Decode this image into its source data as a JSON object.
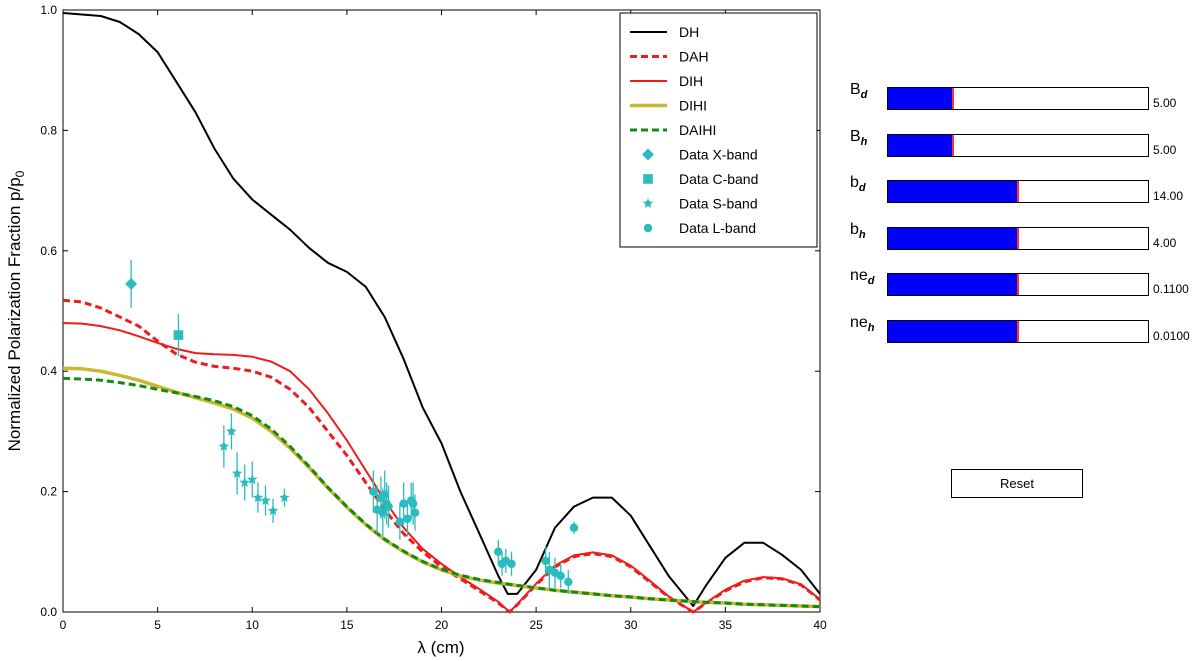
{
  "chart_data": {
    "type": "line",
    "title": "",
    "xlabel": "λ (cm)",
    "ylabel_main": "Normalized Polarization Fraction p/p",
    "ylabel_sub": "0",
    "xlim": [
      0,
      40
    ],
    "ylim": [
      0,
      1.0
    ],
    "xticks": [
      0,
      5,
      10,
      15,
      20,
      25,
      30,
      35,
      40
    ],
    "yticks": [
      0.0,
      0.2,
      0.4,
      0.6,
      0.8,
      1.0
    ],
    "xtick_labels": [
      "0",
      "5",
      "10",
      "15",
      "20",
      "25",
      "30",
      "35",
      "40"
    ],
    "ytick_labels": [
      "0.0",
      "0.2",
      "0.4",
      "0.6",
      "0.8",
      "1.0"
    ],
    "legend_position": "top-right",
    "series": [
      {
        "name": "DH",
        "color": "#000000",
        "style": "solid",
        "kind": "line",
        "x": [
          0,
          2,
          3,
          4,
          5,
          6,
          7,
          8,
          9,
          10,
          11,
          12,
          13,
          14,
          15,
          16,
          17,
          18,
          19,
          20,
          21,
          22,
          23,
          23.5,
          24,
          25,
          26,
          27,
          28,
          29,
          30,
          31,
          32,
          33.3,
          34,
          35,
          36,
          37,
          38,
          39,
          40
        ],
        "y": [
          0.995,
          0.99,
          0.98,
          0.96,
          0.93,
          0.88,
          0.83,
          0.77,
          0.72,
          0.685,
          0.66,
          0.635,
          0.605,
          0.58,
          0.565,
          0.54,
          0.49,
          0.42,
          0.34,
          0.28,
          0.2,
          0.13,
          0.06,
          0.03,
          0.03,
          0.07,
          0.14,
          0.175,
          0.19,
          0.19,
          0.16,
          0.11,
          0.06,
          0.01,
          0.045,
          0.09,
          0.115,
          0.115,
          0.095,
          0.07,
          0.03
        ]
      },
      {
        "name": "DAH",
        "color": "#ee1c1c",
        "style": "dashed",
        "kind": "line",
        "x": [
          0,
          1,
          2,
          3,
          4,
          5,
          6,
          7,
          8,
          9,
          10,
          11,
          12,
          13,
          14,
          15,
          16,
          17,
          18,
          19,
          20,
          21,
          22,
          23,
          23.6,
          24,
          25,
          26,
          27,
          28,
          29,
          30,
          31,
          32,
          33.3,
          34,
          35,
          36,
          37,
          38,
          39,
          40
        ],
        "y": [
          0.518,
          0.515,
          0.505,
          0.49,
          0.475,
          0.45,
          0.428,
          0.415,
          0.408,
          0.405,
          0.4,
          0.39,
          0.37,
          0.34,
          0.3,
          0.26,
          0.215,
          0.17,
          0.13,
          0.1,
          0.075,
          0.055,
          0.035,
          0.015,
          0.0,
          0.012,
          0.045,
          0.075,
          0.092,
          0.097,
          0.092,
          0.075,
          0.05,
          0.025,
          0.0,
          0.015,
          0.035,
          0.05,
          0.057,
          0.055,
          0.045,
          0.02
        ]
      },
      {
        "name": "DIH",
        "color": "#ee1c1c",
        "style": "solid",
        "kind": "line",
        "x": [
          0,
          1,
          2,
          3,
          4,
          5,
          6,
          7,
          8,
          9,
          10,
          11,
          12,
          13,
          14,
          15,
          16,
          17,
          18,
          19,
          20,
          21,
          22,
          23,
          23.6,
          24,
          25,
          26,
          27,
          28,
          29,
          30,
          31,
          32,
          33.3,
          34,
          35,
          36,
          37,
          38,
          39,
          40
        ],
        "y": [
          0.48,
          0.479,
          0.475,
          0.468,
          0.458,
          0.447,
          0.437,
          0.43,
          0.428,
          0.427,
          0.424,
          0.416,
          0.4,
          0.37,
          0.33,
          0.285,
          0.235,
          0.185,
          0.14,
          0.105,
          0.08,
          0.058,
          0.038,
          0.017,
          0.0,
          0.013,
          0.047,
          0.077,
          0.094,
          0.099,
          0.094,
          0.077,
          0.052,
          0.026,
          0.0,
          0.016,
          0.037,
          0.052,
          0.058,
          0.056,
          0.046,
          0.021
        ]
      },
      {
        "name": "DIHI",
        "color": "#c8b832",
        "style": "solid",
        "kind": "thick",
        "x": [
          0,
          1,
          2,
          3,
          4,
          5,
          6,
          7,
          8,
          9,
          10,
          11,
          12,
          13,
          14,
          15,
          16,
          17,
          18,
          19,
          20,
          21,
          22,
          23,
          24,
          25,
          26,
          27,
          28,
          29,
          30,
          31,
          32,
          33,
          34,
          35,
          36,
          37,
          38,
          39,
          40
        ],
        "y": [
          0.405,
          0.404,
          0.4,
          0.393,
          0.385,
          0.375,
          0.365,
          0.356,
          0.347,
          0.337,
          0.322,
          0.3,
          0.272,
          0.24,
          0.206,
          0.174,
          0.145,
          0.12,
          0.1,
          0.083,
          0.07,
          0.06,
          0.053,
          0.048,
          0.044,
          0.04,
          0.036,
          0.033,
          0.03,
          0.027,
          0.025,
          0.022,
          0.02,
          0.018,
          0.016,
          0.015,
          0.013,
          0.012,
          0.011,
          0.01,
          0.009
        ]
      },
      {
        "name": "DAIHI",
        "color": "#138a13",
        "style": "dashed",
        "kind": "line",
        "x": [
          0,
          1,
          2,
          3,
          4,
          5,
          6,
          7,
          8,
          9,
          10,
          11,
          12,
          13,
          14,
          15,
          16,
          17,
          18,
          19,
          20,
          21,
          22,
          23,
          24,
          25,
          26,
          27,
          28,
          29,
          30,
          31,
          32,
          33,
          34,
          35,
          36,
          37,
          38,
          39,
          40
        ],
        "y": [
          0.388,
          0.387,
          0.385,
          0.381,
          0.376,
          0.37,
          0.364,
          0.358,
          0.351,
          0.341,
          0.326,
          0.304,
          0.275,
          0.242,
          0.207,
          0.175,
          0.146,
          0.121,
          0.101,
          0.084,
          0.071,
          0.061,
          0.054,
          0.049,
          0.044,
          0.04,
          0.036,
          0.033,
          0.03,
          0.027,
          0.025,
          0.022,
          0.02,
          0.018,
          0.016,
          0.015,
          0.013,
          0.012,
          0.011,
          0.01,
          0.009
        ]
      },
      {
        "name": "Data X-band",
        "color": "#2bbcbf",
        "kind": "scatter",
        "marker": "diamond",
        "x": [
          3.6
        ],
        "y": [
          0.545
        ],
        "err": [
          0.04
        ]
      },
      {
        "name": "Data C-band",
        "color": "#2bbcbf",
        "kind": "scatter",
        "marker": "square",
        "x": [
          6.1
        ],
        "y": [
          0.46
        ],
        "err": [
          0.035
        ]
      },
      {
        "name": "Data S-band",
        "color": "#2bbcbf",
        "kind": "scatter",
        "marker": "star",
        "x": [
          8.5,
          8.9,
          9.2,
          9.6,
          10.0,
          10.3,
          10.7,
          11.1,
          11.7
        ],
        "y": [
          0.275,
          0.3,
          0.23,
          0.215,
          0.22,
          0.19,
          0.185,
          0.168,
          0.19
        ],
        "err": [
          0.035,
          0.03,
          0.035,
          0.03,
          0.03,
          0.025,
          0.025,
          0.02,
          0.015
        ]
      },
      {
        "name": "Data L-band",
        "color": "#2bbcbf",
        "kind": "scatter",
        "marker": "circle",
        "x": [
          16.4,
          16.6,
          16.8,
          16.9,
          17.0,
          17.1,
          17.2,
          17.8,
          18.0,
          18.2,
          18.4,
          18.5,
          18.6,
          23.0,
          23.2,
          23.4,
          23.7,
          25.5,
          25.7,
          26.0,
          26.3,
          26.7,
          27.0
        ],
        "y": [
          0.2,
          0.17,
          0.19,
          0.165,
          0.195,
          0.18,
          0.175,
          0.15,
          0.18,
          0.155,
          0.185,
          0.18,
          0.165,
          0.1,
          0.08,
          0.085,
          0.08,
          0.085,
          0.07,
          0.065,
          0.06,
          0.05,
          0.14
        ],
        "err": [
          0.035,
          0.04,
          0.035,
          0.04,
          0.04,
          0.035,
          0.035,
          0.03,
          0.035,
          0.03,
          0.03,
          0.035,
          0.03,
          0.02,
          0.02,
          0.02,
          0.02,
          0.025,
          0.03,
          0.025,
          0.02,
          0.02,
          0.01
        ]
      }
    ]
  },
  "sliders": [
    {
      "id": "Bd",
      "base": "B",
      "sub": "d",
      "value_text": "5.00",
      "fraction": 0.25
    },
    {
      "id": "Bh",
      "base": "B",
      "sub": "h",
      "value_text": "5.00",
      "fraction": 0.25
    },
    {
      "id": "bd",
      "base": "b",
      "sub": "d",
      "value_text": "14.00",
      "fraction": 0.5
    },
    {
      "id": "bh",
      "base": "b",
      "sub": "h",
      "value_text": "4.00",
      "fraction": 0.5
    },
    {
      "id": "ned",
      "base": "ne",
      "sub": "d",
      "value_text": "0.1100",
      "fraction": 0.5
    },
    {
      "id": "neh",
      "base": "ne",
      "sub": "h",
      "value_text": "0.0100",
      "fraction": 0.5
    }
  ],
  "reset_label": "Reset"
}
